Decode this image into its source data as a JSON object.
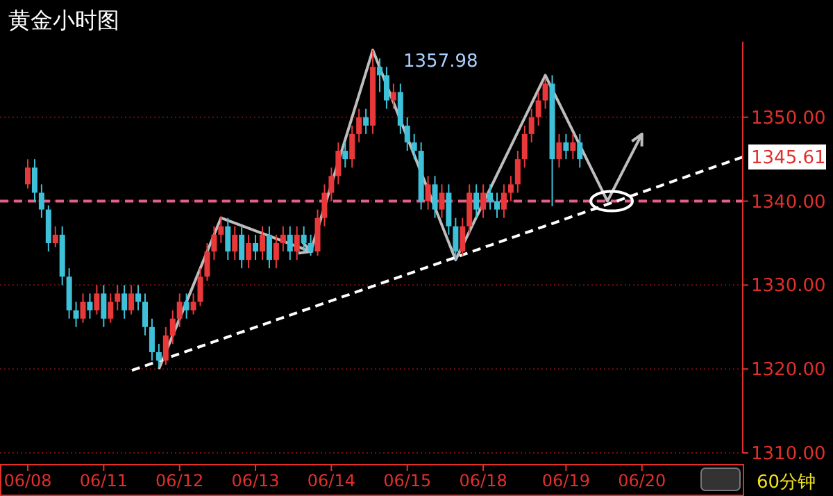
{
  "chart_data": {
    "type": "candlestick",
    "title": "黄金小时图",
    "categories": [
      "06/08",
      null,
      null,
      null,
      null,
      null,
      null,
      null,
      null,
      null,
      null,
      "06/11",
      null,
      null,
      null,
      null,
      null,
      null,
      null,
      null,
      null,
      null,
      "06/12",
      null,
      null,
      null,
      null,
      null,
      null,
      null,
      null,
      null,
      null,
      "06/13",
      null,
      null,
      null,
      null,
      null,
      null,
      null,
      null,
      null,
      null,
      "06/14",
      null,
      null,
      null,
      null,
      null,
      null,
      null,
      null,
      null,
      null,
      "06/15",
      null,
      null,
      null,
      null,
      null,
      null,
      null,
      null,
      null,
      null,
      "06/18",
      null,
      null,
      null,
      null,
      null,
      null,
      null,
      null,
      null,
      null,
      null,
      "06/19",
      null,
      null,
      null,
      null,
      null,
      null,
      null,
      null,
      null,
      null,
      "06/20",
      null,
      null,
      null,
      null,
      null,
      null,
      null,
      null,
      null,
      null,
      null,
      null,
      null
    ],
    "ohlc": [
      [
        1342,
        1345,
        1341.5,
        1344
      ],
      [
        1344,
        1345,
        1340,
        1341
      ],
      [
        1341,
        1342,
        1338,
        1339
      ],
      [
        1339,
        1339.5,
        1334,
        1335
      ],
      [
        1335,
        1337,
        1334.5,
        1336
      ],
      [
        1336,
        1337,
        1330,
        1331
      ],
      [
        1331,
        1332,
        1326,
        1327
      ],
      [
        1327,
        1328,
        1325,
        1326
      ],
      [
        1326,
        1329,
        1325.5,
        1328
      ],
      [
        1328,
        1329,
        1326,
        1327
      ],
      [
        1327,
        1330,
        1326.5,
        1329
      ],
      [
        1329,
        1330,
        1325,
        1326
      ],
      [
        1326,
        1329,
        1325.5,
        1328
      ],
      [
        1328,
        1330,
        1327,
        1329
      ],
      [
        1329,
        1330,
        1326,
        1327
      ],
      [
        1327,
        1330,
        1326.5,
        1329
      ],
      [
        1329,
        1330,
        1327,
        1328
      ],
      [
        1328,
        1329,
        1324,
        1325
      ],
      [
        1325,
        1326,
        1321,
        1322
      ],
      [
        1322,
        1323,
        1320.2,
        1321
      ],
      [
        1321,
        1325,
        1320.5,
        1324
      ],
      [
        1324,
        1327,
        1323,
        1326
      ],
      [
        1326,
        1329,
        1325,
        1328
      ],
      [
        1328,
        1329,
        1326,
        1327
      ],
      [
        1327,
        1329,
        1326.5,
        1328
      ],
      [
        1328,
        1332,
        1327.5,
        1331
      ],
      [
        1331,
        1335,
        1330.5,
        1334
      ],
      [
        1334,
        1337,
        1333,
        1336
      ],
      [
        1336,
        1338.2,
        1335,
        1337
      ],
      [
        1337,
        1338,
        1333,
        1334
      ],
      [
        1334,
        1337,
        1333,
        1336
      ],
      [
        1336,
        1337,
        1332,
        1333
      ],
      [
        1333,
        1336,
        1332,
        1335
      ],
      [
        1335,
        1336,
        1333,
        1334
      ],
      [
        1334,
        1337,
        1333,
        1336
      ],
      [
        1336,
        1337,
        1332,
        1333
      ],
      [
        1333,
        1336,
        1332,
        1335
      ],
      [
        1335,
        1337,
        1334,
        1336
      ],
      [
        1336,
        1337,
        1333,
        1334
      ],
      [
        1334,
        1337,
        1333,
        1336
      ],
      [
        1336,
        1337,
        1334,
        1335
      ],
      [
        1335,
        1336,
        1333.5,
        1334
      ],
      [
        1334,
        1339,
        1333.5,
        1338
      ],
      [
        1338,
        1342,
        1337,
        1341
      ],
      [
        1341,
        1344,
        1340,
        1343
      ],
      [
        1343,
        1347,
        1342,
        1346
      ],
      [
        1346,
        1347,
        1344,
        1345
      ],
      [
        1345,
        1349,
        1344,
        1348
      ],
      [
        1348,
        1351,
        1347,
        1350
      ],
      [
        1350,
        1351,
        1348,
        1349
      ],
      [
        1349,
        1357.98,
        1348,
        1356
      ],
      [
        1356,
        1357,
        1353,
        1355
      ],
      [
        1355,
        1356,
        1351,
        1352
      ],
      [
        1352,
        1354,
        1351,
        1353
      ],
      [
        1353,
        1354,
        1348,
        1349
      ],
      [
        1349,
        1350,
        1346,
        1347
      ],
      [
        1347,
        1348,
        1345,
        1346
      ],
      [
        1346,
        1347,
        1339,
        1340
      ],
      [
        1340,
        1343,
        1339,
        1342
      ],
      [
        1342,
        1343,
        1338,
        1339
      ],
      [
        1339,
        1342,
        1338,
        1341
      ],
      [
        1341,
        1342,
        1336,
        1337
      ],
      [
        1337,
        1338,
        1333,
        1334
      ],
      [
        1334,
        1338,
        1333.5,
        1337
      ],
      [
        1337,
        1342,
        1336,
        1341
      ],
      [
        1341,
        1342,
        1338,
        1339
      ],
      [
        1339,
        1342,
        1338,
        1341
      ],
      [
        1341,
        1342,
        1339,
        1340
      ],
      [
        1340,
        1341,
        1338,
        1339
      ],
      [
        1339,
        1342,
        1338,
        1341
      ],
      [
        1341,
        1343,
        1340,
        1342
      ],
      [
        1342,
        1346,
        1341,
        1345
      ],
      [
        1345,
        1349,
        1344,
        1348
      ],
      [
        1348,
        1351,
        1347,
        1350
      ],
      [
        1350,
        1353,
        1349,
        1352
      ],
      [
        1352,
        1354.6,
        1351,
        1354
      ],
      [
        1354,
        1355,
        1339.4,
        1345
      ],
      [
        1345,
        1348,
        1344,
        1347
      ],
      [
        1347,
        1348,
        1345,
        1346
      ],
      [
        1346,
        1348,
        1345,
        1347
      ],
      [
        1347,
        1348,
        1344,
        1345
      ],
      null,
      null,
      null,
      null,
      null,
      null,
      null,
      null,
      null,
      null,
      null,
      null,
      null,
      null,
      null,
      null,
      null,
      null,
      null,
      null,
      null,
      null
    ],
    "series": [
      {
        "type": "line",
        "color": "#bdbdbd",
        "values": [
          null,
          null,
          null,
          null,
          null,
          null,
          null,
          null,
          null,
          null,
          null,
          null,
          null,
          null,
          null,
          null,
          null,
          null,
          null,
          1320,
          null,
          null,
          null,
          null,
          null,
          null,
          null,
          null,
          1338,
          null,
          null,
          null,
          null,
          null,
          null,
          null,
          null,
          null,
          null,
          null,
          null,
          1334,
          null,
          null,
          null,
          null,
          null,
          null,
          null,
          null,
          1358,
          null,
          null,
          null,
          null,
          null,
          null,
          null,
          null,
          null,
          null,
          null,
          1333,
          null,
          null,
          null,
          null,
          null,
          null,
          null,
          null,
          null,
          null,
          null,
          null,
          1355,
          null,
          null,
          null,
          null,
          null,
          null,
          null,
          null,
          1340,
          null,
          null,
          null,
          null,
          1348,
          null,
          null,
          null,
          null,
          null,
          null,
          null,
          null,
          null,
          null,
          null,
          null,
          null
        ]
      }
    ],
    "ylim": [
      1310,
      1359
    ],
    "yticks": [
      {
        "value": 1310,
        "label": "1310.00"
      },
      {
        "value": 1320,
        "label": "1320.00"
      },
      {
        "value": 1330,
        "label": "1330.00"
      },
      {
        "value": 1340,
        "label": "1340.00"
      },
      {
        "value": 1350,
        "label": "1350.00"
      }
    ],
    "grid": "y",
    "ref_lines": [
      {
        "axis": "y",
        "value": 1340,
        "color": "#e0608a",
        "line_style": "dashed"
      }
    ],
    "annotations": [
      "1357.98",
      "1345.61",
      "60分钟"
    ]
  }
}
